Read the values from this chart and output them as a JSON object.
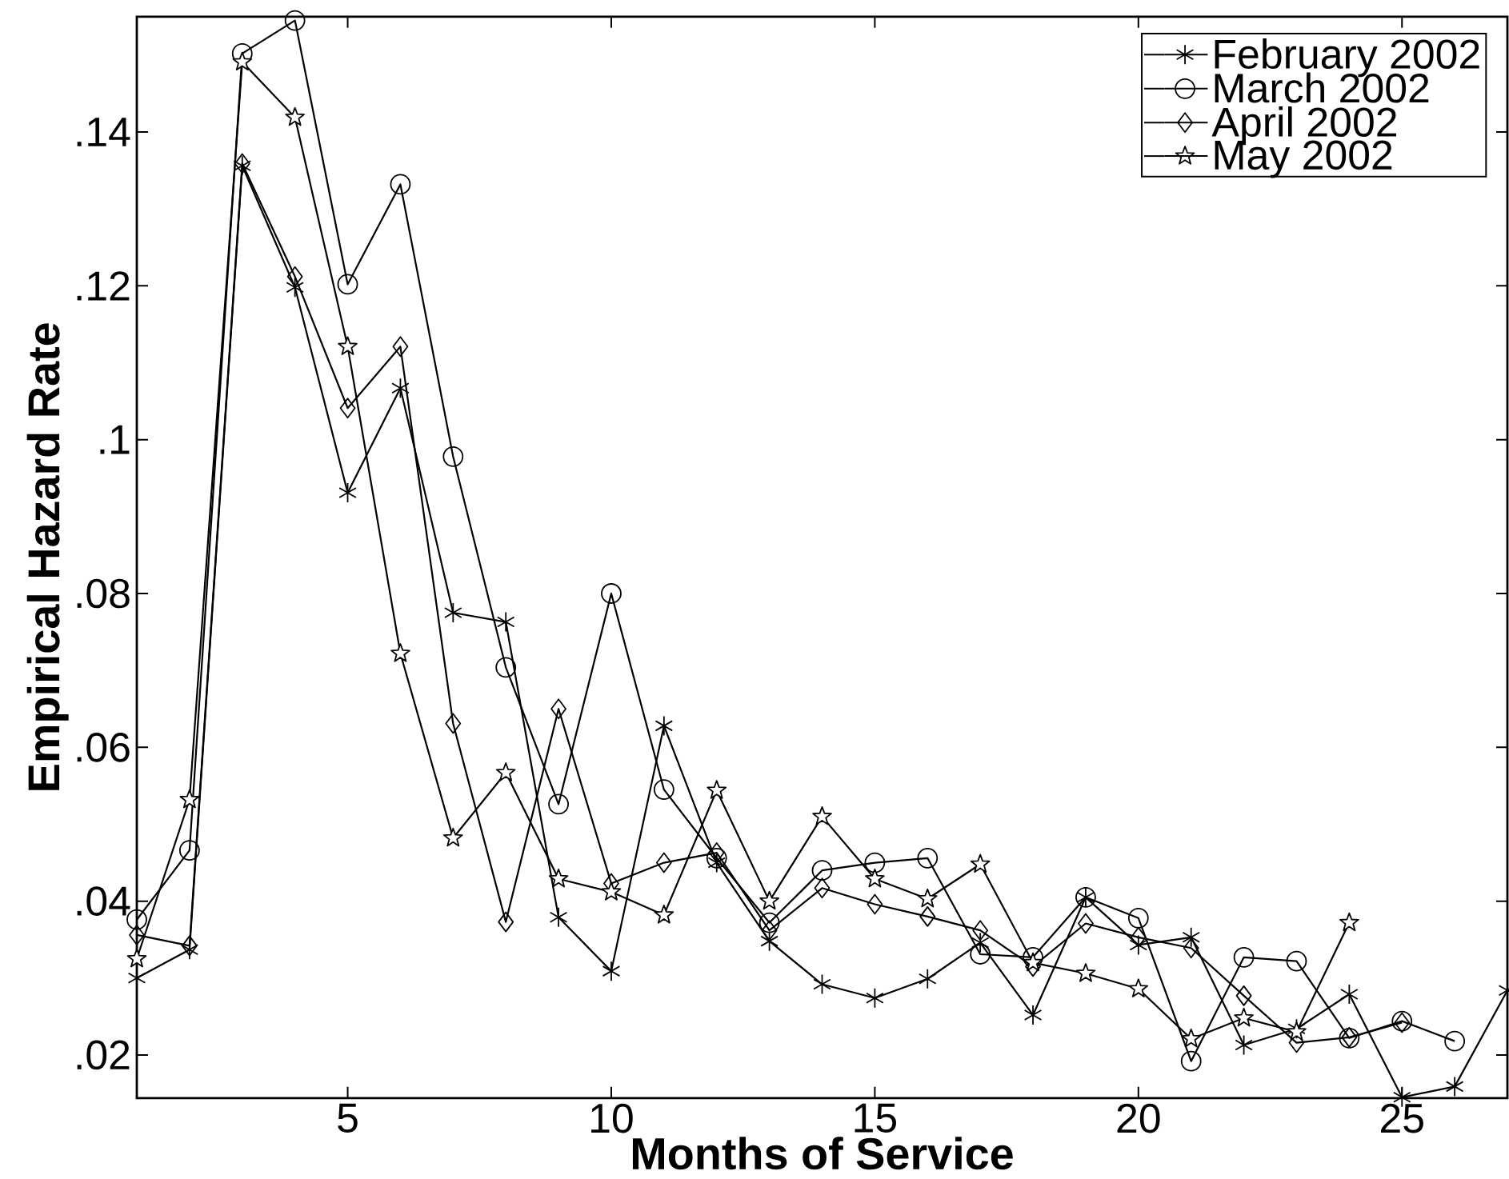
{
  "chart_data": {
    "type": "line",
    "xlabel": "Months of Service",
    "ylabel": "Empirical Hazard Rate",
    "x": [
      1,
      2,
      3,
      4,
      5,
      6,
      7,
      8,
      9,
      10,
      11,
      12,
      13,
      14,
      15,
      16,
      17,
      18,
      19,
      20,
      21,
      22,
      23,
      24,
      25,
      26,
      27
    ],
    "series": [
      {
        "name": "February 2002",
        "color": "#000000",
        "marker": "cross",
        "values": [
          0.03,
          0.0337,
          0.1356,
          0.1198,
          0.0931,
          0.1067,
          0.0775,
          0.0763,
          0.0379,
          0.0309,
          0.0628,
          0.045,
          0.0348,
          0.0292,
          0.0274,
          0.0299,
          0.0346,
          0.0252,
          0.0405,
          0.0343,
          0.0353,
          0.0213,
          0.0234,
          0.0279,
          0.0145,
          0.0159,
          0.0284
        ]
      },
      {
        "name": "March 2002",
        "color": "#000000",
        "marker": "circle",
        "values": [
          0.0376,
          0.0466,
          0.1502,
          0.1545,
          0.1202,
          0.1332,
          0.0978,
          0.0704,
          0.0526,
          0.08,
          0.0545,
          0.0456,
          0.0372,
          0.044,
          0.045,
          0.0456,
          0.0331,
          0.0327,
          0.0405,
          0.0378,
          0.0192,
          0.0327,
          0.0322,
          0.0222,
          0.0244,
          0.0218,
          null
        ]
      },
      {
        "name": "April 2002",
        "color": "#000000",
        "marker": "diamond",
        "values": [
          0.0356,
          0.0342,
          0.1359,
          0.1212,
          0.1041,
          0.1121,
          0.0631,
          0.0373,
          0.065,
          0.0423,
          0.045,
          0.0463,
          0.0362,
          0.0417,
          0.0396,
          0.038,
          0.0362,
          0.0315,
          0.0371,
          0.0353,
          0.0339,
          0.0277,
          0.0216,
          0.0223,
          0.0242,
          null,
          null
        ]
      },
      {
        "name": "May 2002",
        "color": "#000000",
        "marker": "star",
        "values": [
          0.0325,
          0.0532,
          0.1491,
          0.1419,
          0.1121,
          0.0722,
          0.0482,
          0.0567,
          0.0429,
          0.0412,
          0.0382,
          0.0544,
          0.04,
          0.051,
          0.0429,
          0.0403,
          0.0448,
          0.032,
          0.0306,
          0.0286,
          0.0221,
          0.0248,
          0.023,
          0.0372,
          null,
          null,
          null
        ]
      }
    ],
    "xlim": [
      1,
      27
    ],
    "ylim": [
      0.0144,
      0.155
    ],
    "xticks": [
      5,
      10,
      15,
      20,
      25
    ],
    "yticks": [
      {
        "value": 0.02,
        "label": ".02"
      },
      {
        "value": 0.04,
        "label": ".04"
      },
      {
        "value": 0.06,
        "label": ".06"
      },
      {
        "value": 0.08,
        "label": ".08"
      },
      {
        "value": 0.1,
        "label": ".1"
      },
      {
        "value": 0.12,
        "label": ".12"
      },
      {
        "value": 0.14,
        "label": ".14"
      }
    ],
    "grid": false,
    "legend": "top right",
    "line_style": "solid"
  }
}
